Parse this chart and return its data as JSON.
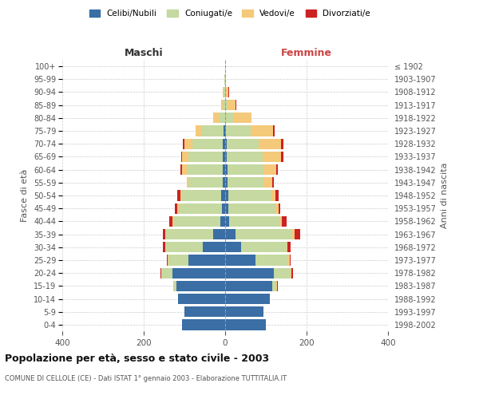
{
  "age_groups": [
    "0-4",
    "5-9",
    "10-14",
    "15-19",
    "20-24",
    "25-29",
    "30-34",
    "35-39",
    "40-44",
    "45-49",
    "50-54",
    "55-59",
    "60-64",
    "65-69",
    "70-74",
    "75-79",
    "80-84",
    "85-89",
    "90-94",
    "95-99",
    "100+"
  ],
  "birth_years": [
    "1998-2002",
    "1993-1997",
    "1988-1992",
    "1983-1987",
    "1978-1982",
    "1973-1977",
    "1968-1972",
    "1963-1967",
    "1958-1962",
    "1953-1957",
    "1948-1952",
    "1943-1947",
    "1938-1942",
    "1933-1937",
    "1928-1932",
    "1923-1927",
    "1918-1922",
    "1913-1917",
    "1908-1912",
    "1903-1907",
    "≤ 1902"
  ],
  "male": {
    "celibi": [
      105,
      100,
      115,
      120,
      130,
      90,
      55,
      30,
      12,
      8,
      10,
      5,
      5,
      5,
      5,
      3,
      0,
      0,
      0,
      0,
      0
    ],
    "coniugati": [
      0,
      0,
      0,
      5,
      25,
      50,
      90,
      115,
      115,
      105,
      95,
      85,
      90,
      85,
      75,
      55,
      15,
      5,
      3,
      1,
      0
    ],
    "vedovi": [
      0,
      0,
      0,
      2,
      2,
      2,
      3,
      3,
      3,
      5,
      5,
      5,
      10,
      15,
      20,
      15,
      15,
      5,
      3,
      1,
      0
    ],
    "divorziati": [
      0,
      0,
      0,
      0,
      2,
      2,
      5,
      5,
      8,
      5,
      8,
      0,
      5,
      3,
      3,
      0,
      0,
      0,
      0,
      0,
      0
    ]
  },
  "female": {
    "nubili": [
      100,
      95,
      110,
      115,
      120,
      75,
      40,
      25,
      10,
      8,
      8,
      5,
      5,
      3,
      3,
      2,
      0,
      0,
      0,
      0,
      0
    ],
    "coniugate": [
      0,
      0,
      0,
      10,
      40,
      80,
      110,
      140,
      125,
      115,
      105,
      90,
      90,
      90,
      80,
      60,
      20,
      5,
      2,
      1,
      0
    ],
    "vedove": [
      0,
      0,
      0,
      2,
      3,
      3,
      3,
      5,
      5,
      8,
      10,
      20,
      30,
      45,
      55,
      55,
      45,
      20,
      5,
      1,
      0
    ],
    "divorziate": [
      0,
      0,
      0,
      2,
      3,
      3,
      8,
      15,
      10,
      5,
      8,
      5,
      5,
      5,
      5,
      5,
      0,
      2,
      2,
      0,
      0
    ]
  },
  "colors": {
    "celibi": "#3a6ea5",
    "coniugati": "#c5d9a0",
    "vedovi": "#f5c97a",
    "divorziati": "#cc2222"
  },
  "title": "Popolazione per età, sesso e stato civile - 2003",
  "subtitle": "COMUNE DI CELLOLE (CE) - Dati ISTAT 1° gennaio 2003 - Elaborazione TUTTITALIA.IT",
  "xlabel_left": "Maschi",
  "xlabel_right": "Femmine",
  "ylabel_left": "Fasce di età",
  "ylabel_right": "Anni di nascita",
  "xlim": 400,
  "background_color": "#ffffff",
  "grid_color": "#cccccc",
  "legend_labels": [
    "Celibi/Nubili",
    "Coniugati/e",
    "Vedovi/e",
    "Divorziati/e"
  ]
}
